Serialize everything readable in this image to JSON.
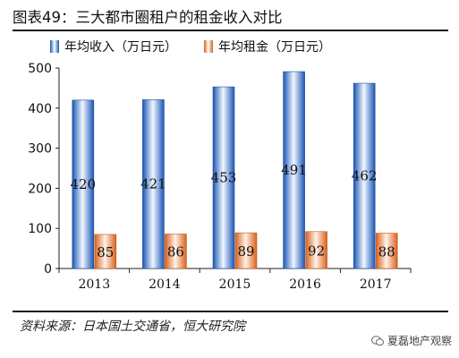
{
  "header": {
    "title": "图表49：三大都市圈租户的租金收入对比"
  },
  "footer": {
    "source": "资料来源：日本国土交通省，恒大研究院"
  },
  "watermark": {
    "text": "夏磊地产观察",
    "icon": "wechat-icon"
  },
  "colors": {
    "income": "#2f6fd0",
    "rent": "#e07434"
  },
  "chart_data": {
    "type": "bar",
    "title": "",
    "xlabel": "",
    "ylabel": "",
    "categories": [
      "2013",
      "2014",
      "2015",
      "2016",
      "2017"
    ],
    "series": [
      {
        "name": "年均收入（万日元）",
        "values": [
          420,
          421,
          453,
          491,
          462
        ]
      },
      {
        "name": "年均租金（万日元）",
        "values": [
          85,
          86,
          89,
          92,
          88
        ]
      }
    ],
    "ylim": [
      0,
      500
    ],
    "yticks": [
      "0",
      "100",
      "200",
      "300",
      "400",
      "500"
    ],
    "grid": false,
    "legend_position": "top",
    "data_labels": true
  }
}
